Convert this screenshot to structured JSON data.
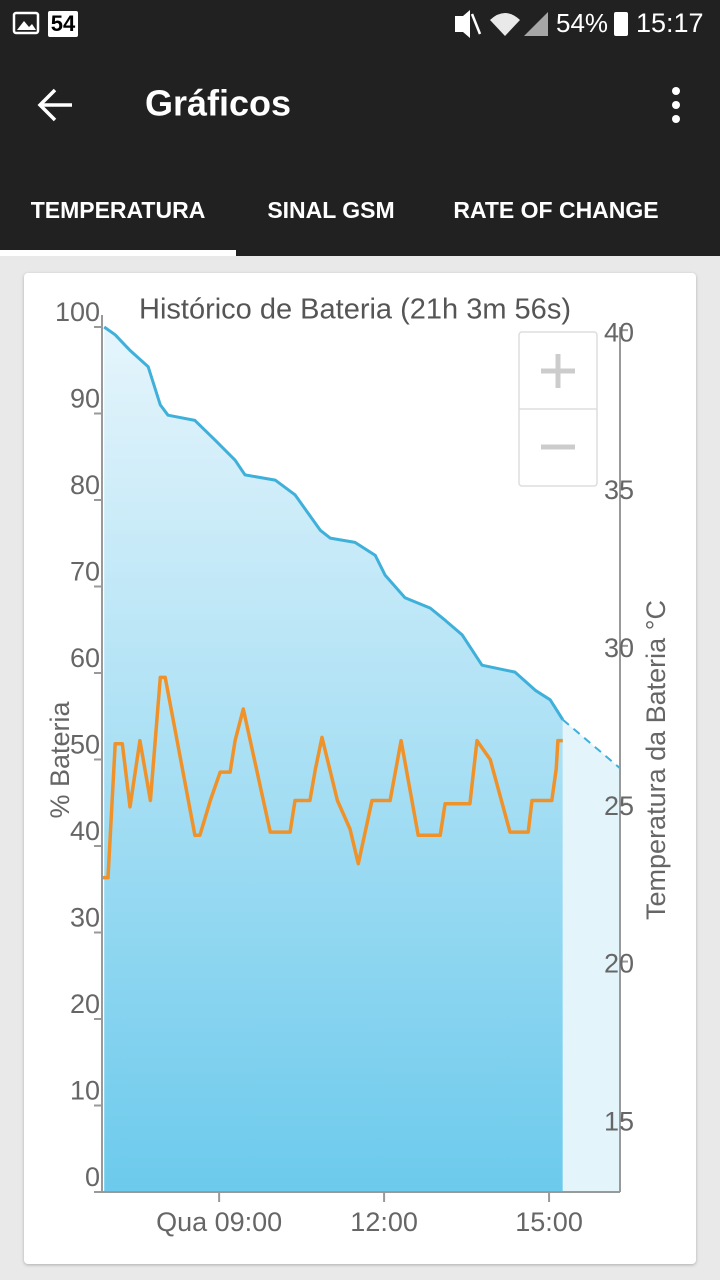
{
  "status_bar": {
    "notification_count": "54",
    "battery": "54%",
    "time": "15:17"
  },
  "app_bar": {
    "title": "Gráficos"
  },
  "tabs": [
    "TEMPERATURA",
    "SINAL GSM",
    "RATE OF CHANGE"
  ],
  "chart_data": {
    "type": "line",
    "title": "Histórico de Bateria (21h 3m 56s)",
    "y_label": "% Bateria",
    "y2_label": "Temperatura da Bateria °C",
    "xlim": [
      6.87,
      16.29
    ],
    "xticks": [
      {
        "value": 9,
        "label": "Qua 09:00"
      },
      {
        "value": 12,
        "label": "12:00"
      },
      {
        "value": 15,
        "label": "15:00"
      }
    ],
    "ylim": [
      0,
      100
    ],
    "yticks": [
      0,
      10,
      20,
      30,
      40,
      50,
      60,
      70,
      80,
      90,
      100
    ],
    "y2lim": [
      12.7,
      40.1
    ],
    "y2ticks": [
      15,
      20,
      25,
      30,
      35,
      40
    ],
    "series": [
      {
        "color": "#3fb0d9",
        "fill": true,
        "x": [
          6.91,
          7.11,
          7.38,
          7.71,
          7.93,
          8.07,
          8.56,
          8.93,
          9.29,
          9.47,
          10.02,
          10.38,
          10.84,
          11.02,
          11.47,
          11.84,
          12.02,
          12.38,
          12.84,
          13.11,
          13.42,
          13.78,
          14.38,
          14.75,
          15.02,
          15.25
        ],
        "values": [
          100,
          99.1,
          97.3,
          95.4,
          91,
          89.8,
          89.2,
          86.9,
          84.6,
          82.9,
          82.3,
          80.6,
          76.5,
          75.6,
          75.1,
          73.6,
          71.3,
          68.7,
          67.5,
          66.1,
          64.4,
          60.9,
          60.1,
          58.0,
          56.9,
          54.6
        ]
      },
      {
        "color": "#3fb0d9",
        "dashed": true,
        "x": [
          15.25,
          16.29
        ],
        "values": [
          54.6,
          49.0
        ]
      },
      {
        "color": "#f0922a",
        "axis": "y2",
        "x": [
          6.87,
          6.98,
          7.11,
          7.24,
          7.38,
          7.56,
          7.75,
          7.93,
          8.02,
          8.56,
          8.65,
          8.84,
          9.02,
          9.2,
          9.29,
          9.44,
          9.93,
          10.29,
          10.38,
          10.65,
          10.75,
          10.87,
          11.15,
          11.38,
          11.53,
          11.78,
          12.11,
          12.31,
          12.62,
          13.02,
          13.11,
          13.56,
          13.69,
          13.93,
          14.29,
          14.62,
          14.69,
          15.05,
          15.13,
          15.16,
          15.25
        ],
        "values": [
          22.66,
          22.66,
          26.9,
          26.9,
          24.9,
          27.0,
          25.1,
          29.0,
          29.0,
          24.0,
          24.0,
          25.1,
          26.0,
          26.0,
          27.0,
          28.0,
          24.1,
          24.1,
          25.1,
          25.1,
          26.1,
          27.1,
          25.1,
          24.2,
          23.1,
          25.1,
          25.1,
          27.0,
          24.0,
          24.0,
          25.0,
          25.0,
          27.0,
          26.4,
          24.1,
          24.1,
          25.1,
          25.1,
          26.1,
          27.0,
          27.0
        ]
      }
    ]
  }
}
